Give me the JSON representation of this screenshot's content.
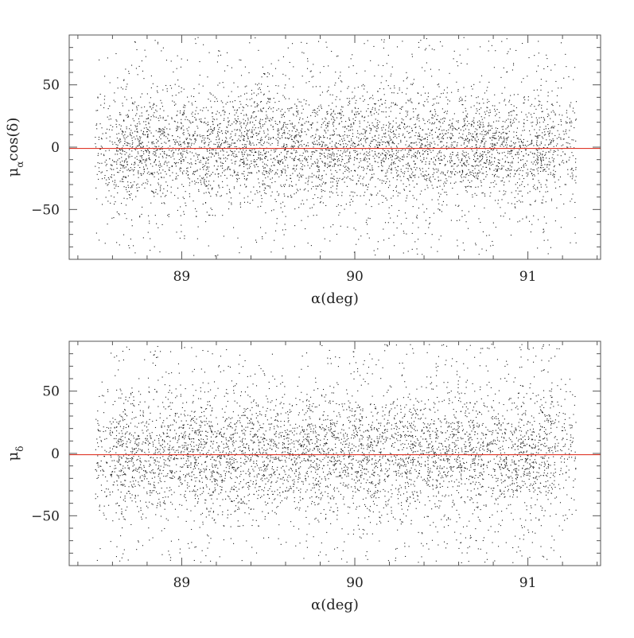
{
  "chart_data": [
    {
      "type": "scatter",
      "xlabel": "α(deg)",
      "ylabel": "μ",
      "ylabel_sub": "α",
      "ylabel_suffix": "cos(δ)",
      "xlim": [
        88.35,
        91.42
      ],
      "ylim": [
        -90,
        90
      ],
      "x_ticks": [
        89,
        90,
        91
      ],
      "x_tick_labels": [
        "89",
        "90",
        "91"
      ],
      "y_ticks": [
        -50,
        0,
        50
      ],
      "y_tick_labels": [
        "−50",
        "0",
        "50"
      ],
      "x_minor_step": 0.2,
      "y_minor_step": 10,
      "reference_line": {
        "y": -1,
        "color": "#e0392b"
      },
      "points_color": "#1a1a1a",
      "x_data_range": [
        88.5,
        91.28
      ],
      "y_core_sigma": 22,
      "approx_point_count": 5200,
      "grid": false
    },
    {
      "type": "scatter",
      "xlabel": "α(deg)",
      "ylabel": "μ",
      "ylabel_sub": "δ",
      "ylabel_suffix": "",
      "xlim": [
        88.35,
        91.42
      ],
      "ylim": [
        -90,
        90
      ],
      "x_ticks": [
        89,
        90,
        91
      ],
      "x_tick_labels": [
        "89",
        "90",
        "91"
      ],
      "y_ticks": [
        -50,
        0,
        50
      ],
      "y_tick_labels": [
        "−50",
        "0",
        "50"
      ],
      "x_minor_step": 0.2,
      "y_minor_step": 10,
      "reference_line": {
        "y": -1,
        "color": "#e0392b"
      },
      "points_color": "#1a1a1a",
      "x_data_range": [
        88.5,
        91.28
      ],
      "y_core_sigma": 24,
      "approx_point_count": 5200,
      "grid": false
    }
  ]
}
